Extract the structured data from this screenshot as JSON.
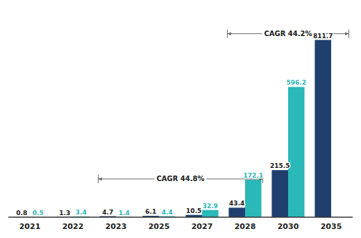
{
  "chart_data": {
    "type": "bar",
    "categories": [
      "2021",
      "2022",
      "2023",
      "2025",
      "2027",
      "2028",
      "2030",
      "2035"
    ],
    "series": [
      {
        "color": "#1f3f6e",
        "values": [
          0.8,
          1.3,
          4.7,
          6.1,
          10.5,
          43.4,
          215.5,
          811.7
        ]
      },
      {
        "color": "#2ab8b8",
        "values": [
          0.5,
          3.4,
          1.4,
          4.4,
          32.9,
          172.1,
          596.2,
          null
        ]
      }
    ],
    "ylim": [
      0,
      950
    ],
    "grid": false,
    "data_labels": true,
    "tick_labels": "x",
    "annotations": [
      {
        "text": "CAGR 44.8%",
        "x": [
          "2023",
          "2028"
        ],
        "y": 175
      },
      {
        "text": "CAGR 44.2%",
        "x": [
          "2028",
          "2035"
        ],
        "y": 840
      }
    ]
  }
}
